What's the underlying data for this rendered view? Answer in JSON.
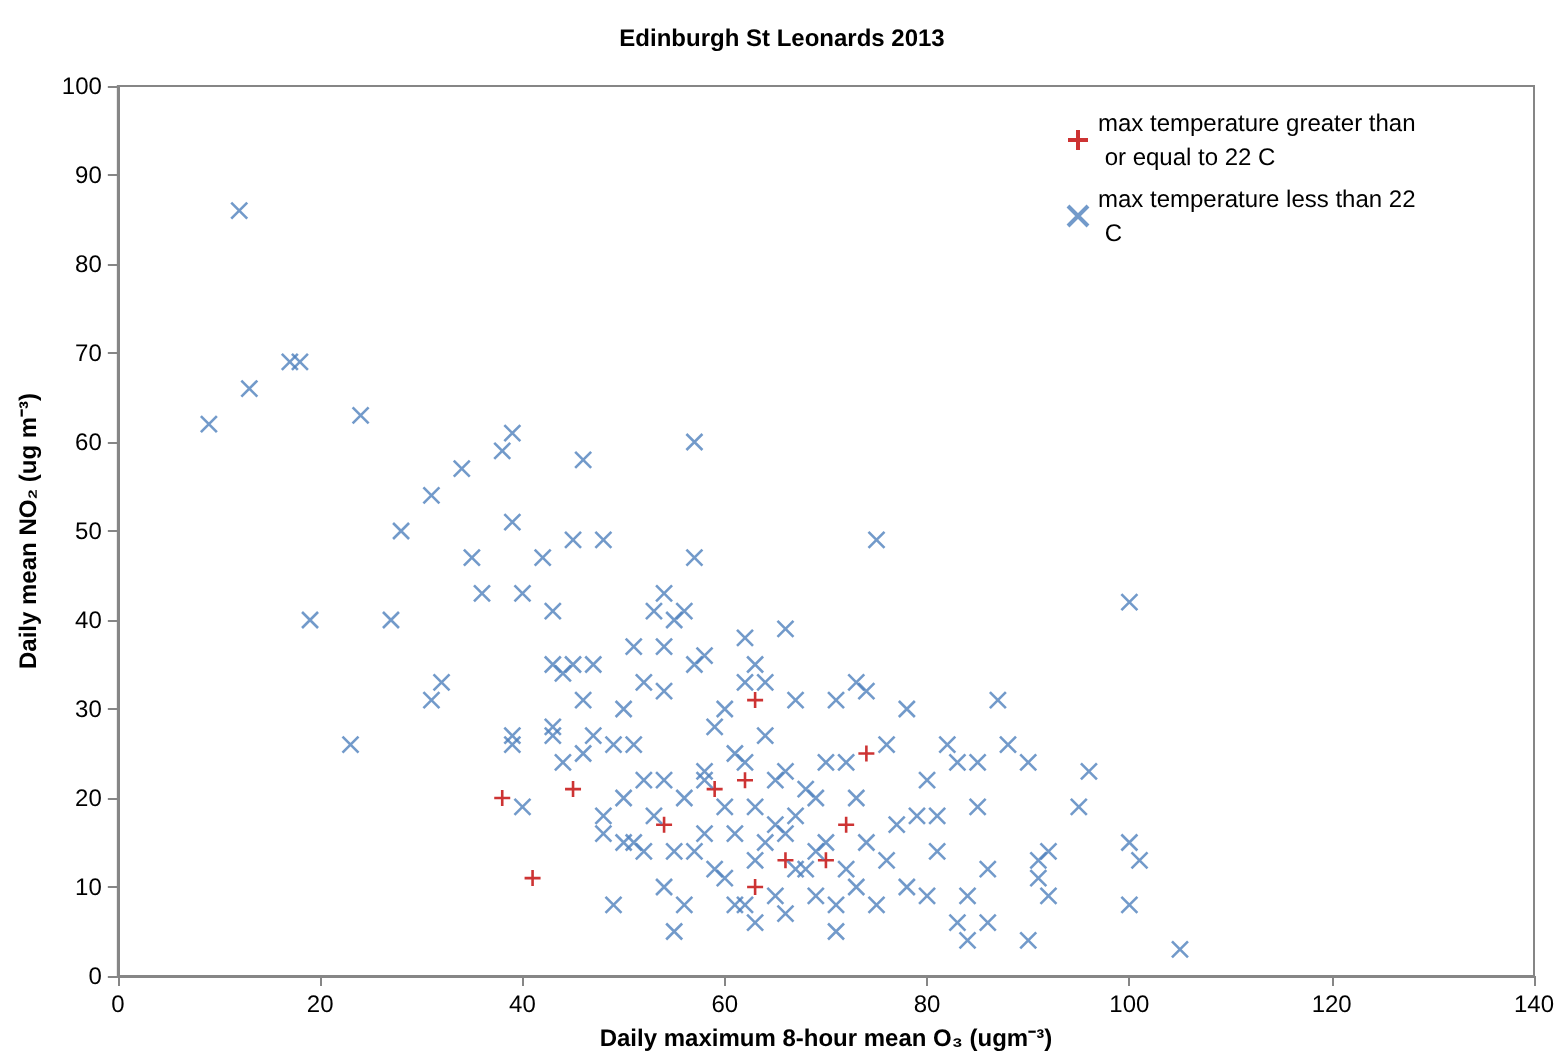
{
  "chart_data": {
    "type": "scatter",
    "title": "Edinburgh St Leonards 2013",
    "xlabel": "Daily maximum 8-hour mean O₃ (ugm⁻³)",
    "ylabel": "Daily mean NO₂ (ug m⁻³)",
    "xlim": [
      0,
      140
    ],
    "xticks": [
      0,
      20,
      40,
      60,
      80,
      100,
      120,
      140
    ],
    "ylim": [
      0,
      100
    ],
    "yticks": [
      0,
      10,
      20,
      30,
      40,
      50,
      60,
      70,
      80,
      90,
      100
    ],
    "grid": false,
    "legend": "top right",
    "marker": "cross",
    "series": [
      {
        "name": "max temperature greater than or equal to 22 C",
        "color": "#c00000",
        "x": [
          38,
          41,
          45,
          54,
          59,
          62,
          63,
          63,
          66,
          70,
          72,
          74
        ],
        "values": [
          20,
          11,
          21,
          17,
          21,
          22,
          31,
          10,
          13,
          13,
          17,
          25
        ]
      },
      {
        "name": "max temperature less than 22 C",
        "color": "#4f81bd",
        "x": [
          9,
          12,
          13,
          17,
          18,
          24,
          19,
          23,
          27,
          28,
          31,
          31,
          32,
          34,
          35,
          36,
          38,
          39,
          39,
          39,
          39,
          40,
          40,
          42,
          43,
          43,
          43,
          43,
          44,
          44,
          45,
          45,
          46,
          46,
          46,
          47,
          47,
          48,
          48,
          48,
          49,
          49,
          50,
          50,
          51,
          51,
          51,
          52,
          52,
          53,
          54,
          54,
          54,
          54,
          54,
          55,
          55,
          55,
          56,
          56,
          57,
          57,
          57,
          58,
          58,
          58,
          59,
          59,
          60,
          60,
          61,
          61,
          62,
          62,
          62,
          62,
          63,
          63,
          63,
          64,
          64,
          64,
          65,
          65,
          66,
          66,
          66,
          67,
          67,
          68,
          68,
          69,
          69,
          70,
          70,
          71,
          71,
          72,
          72,
          73,
          73,
          74,
          74,
          75,
          75,
          76,
          76,
          77,
          78,
          78,
          79,
          80,
          80,
          81,
          81,
          82,
          83,
          83,
          84,
          84,
          85,
          85,
          86,
          86,
          87,
          88,
          90,
          90,
          91,
          91,
          92,
          92,
          95,
          96,
          100,
          100,
          100,
          101,
          105,
          52,
          53,
          56,
          57,
          60,
          61,
          63,
          65,
          67,
          69,
          71,
          73,
          66,
          58,
          50
        ],
        "values": [
          62,
          86,
          66,
          69,
          69,
          63,
          40,
          26,
          40,
          50,
          54,
          31,
          33,
          57,
          47,
          43,
          59,
          61,
          51,
          27,
          26,
          43,
          19,
          47,
          35,
          41,
          28,
          27,
          34,
          24,
          35,
          49,
          58,
          31,
          25,
          35,
          27,
          49,
          16,
          18,
          8,
          26,
          30,
          20,
          37,
          26,
          15,
          33,
          22,
          41,
          43,
          37,
          32,
          22,
          10,
          40,
          5,
          14,
          41,
          20,
          47,
          60,
          35,
          36,
          23,
          16,
          28,
          12,
          30,
          19,
          16,
          25,
          38,
          33,
          24,
          8,
          35,
          19,
          6,
          33,
          27,
          15,
          22,
          9,
          39,
          23,
          7,
          31,
          18,
          21,
          12,
          20,
          9,
          24,
          15,
          31,
          5,
          24,
          12,
          33,
          20,
          32,
          15,
          49,
          8,
          26,
          13,
          17,
          30,
          10,
          18,
          22,
          9,
          18,
          14,
          26,
          24,
          6,
          9,
          4,
          24,
          19,
          12,
          6,
          31,
          26,
          24,
          4,
          13,
          11,
          14,
          9,
          19,
          23,
          42,
          15,
          8,
          13,
          3,
          14,
          18,
          8,
          14,
          11,
          8,
          13,
          17,
          12,
          14,
          8,
          10,
          16,
          22,
          15
        ]
      }
    ]
  }
}
